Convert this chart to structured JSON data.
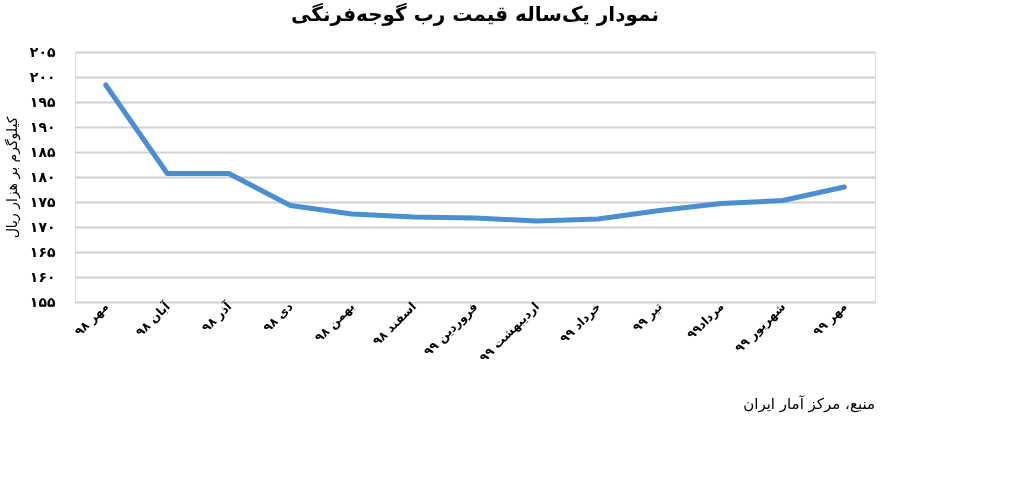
{
  "chart_data": {
    "type": "line",
    "title": "نمودار یک‌ساله قیمت رب گوجه‌فرنگی",
    "ylabel": "کیلوگرم بر هزار ریال",
    "categories": [
      "مهر ۹۸",
      "آبان ۹۸",
      "آذر ۹۸",
      "دی ۹۸",
      "بهمن ۹۸",
      "اسفند ۹۸",
      "فروردین ۹۹",
      "اردیبهشت ۹۹",
      "خرداد ۹۹",
      "تیر ۹۹",
      "مرداد۹۹",
      "شهریور ۹۹",
      "مهر ۹۹"
    ],
    "series": [
      {
        "color": "#4a8fd0",
        "values": [
          198.4,
          180.7,
          180.7,
          174.3,
          172.6,
          172.0,
          171.8,
          171.2,
          171.6,
          173.3,
          174.7,
          175.3,
          178.0
        ]
      }
    ],
    "ylim": [
      155,
      205
    ],
    "yticks": [
      {
        "value": 155,
        "label": "۱۵۵"
      },
      {
        "value": 160,
        "label": "۱۶۰"
      },
      {
        "value": 165,
        "label": "۱۶۵"
      },
      {
        "value": 170,
        "label": "۱۷۰"
      },
      {
        "value": 175,
        "label": "۱۷۵"
      },
      {
        "value": 180,
        "label": "۱۸۰"
      },
      {
        "value": 185,
        "label": "۱۸۵"
      },
      {
        "value": 190,
        "label": "۱۹۰"
      },
      {
        "value": 195,
        "label": "۱۹۵"
      },
      {
        "value": 200,
        "label": "۲۰۰"
      },
      {
        "value": 205,
        "label": "۲۰۵"
      }
    ],
    "grid": "y",
    "marker": "none",
    "line_style": "solid",
    "annotations": [
      "منبع، مرکز آمار ایران"
    ]
  }
}
